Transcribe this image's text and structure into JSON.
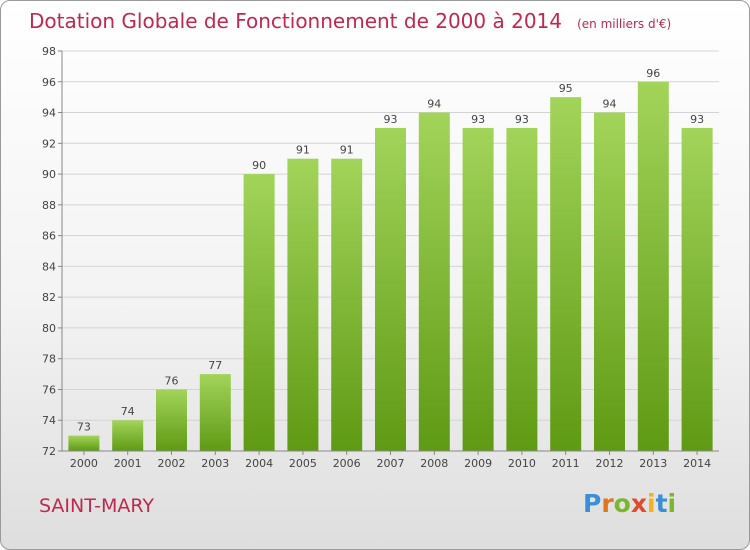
{
  "header": {
    "title": "Dotation Globale de Fonctionnement de 2000 à 2014",
    "unit": "(en milliers d'€)"
  },
  "footer": {
    "commune": "SAINT-MARY",
    "logo_letters": [
      "P",
      "r",
      "o",
      "x",
      "i",
      "t",
      "i"
    ]
  },
  "colors": {
    "bar_top": "#a2d45a",
    "bar_bottom": "#5f9a14",
    "title": "#c0284e",
    "grid": "#d4d4d4"
  },
  "chart_data": {
    "type": "bar",
    "title": "Dotation Globale de Fonctionnement de 2000 à 2014",
    "subtitle": "(en milliers d'€)",
    "xlabel": "",
    "ylabel": "",
    "categories": [
      "2000",
      "2001",
      "2002",
      "2003",
      "2004",
      "2005",
      "2006",
      "2007",
      "2008",
      "2009",
      "2010",
      "2011",
      "2012",
      "2013",
      "2014"
    ],
    "values": [
      73,
      74,
      76,
      77,
      90,
      91,
      91,
      93,
      94,
      93,
      93,
      95,
      94,
      96,
      93
    ],
    "ylim": [
      72,
      98
    ],
    "yticks": [
      72,
      74,
      76,
      78,
      80,
      82,
      84,
      86,
      88,
      90,
      92,
      94,
      96,
      98
    ],
    "grid": true,
    "legend": "none"
  }
}
